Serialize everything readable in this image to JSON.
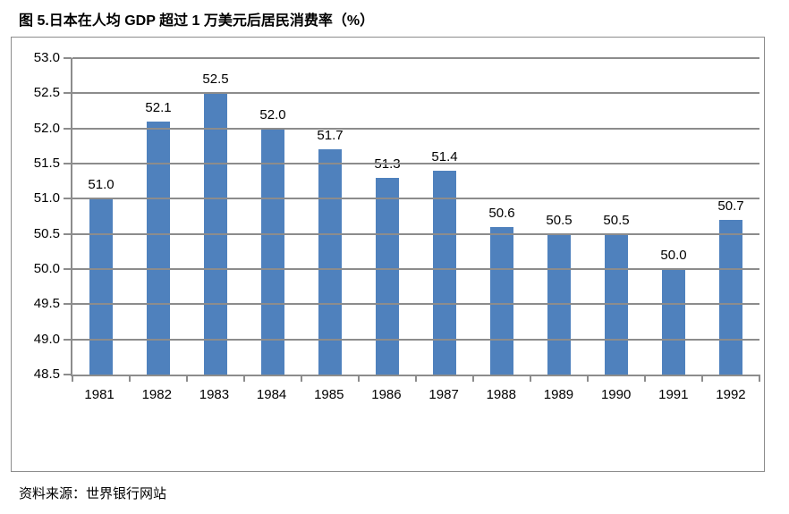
{
  "source_note": "资料来源：世界银行网站",
  "chart_data": {
    "type": "bar",
    "title": "图 5.日本在人均 GDP 超过 1 万美元后居民消费率（%）",
    "categories": [
      "1981",
      "1982",
      "1983",
      "1984",
      "1985",
      "1986",
      "1987",
      "1988",
      "1989",
      "1990",
      "1991",
      "1992"
    ],
    "values": [
      51.0,
      52.1,
      52.5,
      52.0,
      51.7,
      51.3,
      51.4,
      50.6,
      50.5,
      50.5,
      50.0,
      50.7
    ],
    "data_labels": [
      "51.0",
      "52.1",
      "52.5",
      "52.0",
      "51.7",
      "51.3",
      "51.4",
      "50.6",
      "50.5",
      "50.5",
      "50.0",
      "50.7"
    ],
    "xlabel": "",
    "ylabel": "",
    "ylim": [
      48.5,
      53.0
    ],
    "ytick_step": 0.5,
    "ytick_labels": [
      "53.0",
      "52.5",
      "52.0",
      "51.5",
      "51.0",
      "50.5",
      "50.0",
      "49.5",
      "49.0",
      "48.5"
    ],
    "grid": true,
    "legend_position": "none",
    "bar_color": "#4F81BD",
    "axis_color": "#8C8C8C",
    "gridline_color": "#8C8C8C"
  }
}
